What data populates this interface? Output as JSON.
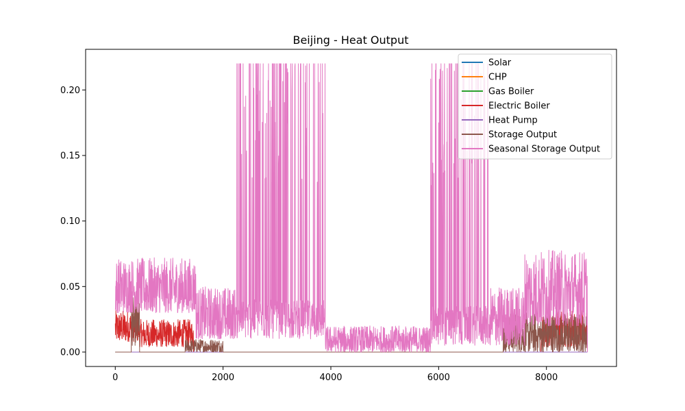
{
  "chart_data": {
    "type": "line",
    "title": "Beijing - Heat Output",
    "xlabel": "",
    "ylabel": "",
    "xlim": [
      -550,
      9300
    ],
    "ylim": [
      -0.011,
      0.231
    ],
    "x_ticks": [
      0,
      2000,
      4000,
      6000,
      8000
    ],
    "x_tick_labels": [
      "0",
      "2000",
      "4000",
      "6000",
      "8000"
    ],
    "y_ticks": [
      0.0,
      0.05,
      0.1,
      0.15,
      0.2
    ],
    "y_tick_labels": [
      "0.00",
      "0.05",
      "0.10",
      "0.15",
      "0.20"
    ],
    "grid": false,
    "legend_position": "top-right",
    "hours": 8760,
    "series": [
      {
        "name": "Solar",
        "color": "#1f77b4",
        "segments": [
          {
            "x0": 0,
            "x1": 8760,
            "base": 0.0,
            "peak": 0.0
          }
        ]
      },
      {
        "name": "CHP",
        "color": "#ff7f0e",
        "segments": [
          {
            "x0": 0,
            "x1": 8760,
            "base": 0.0,
            "peak": 0.0
          }
        ]
      },
      {
        "name": "Gas Boiler",
        "color": "#2ca02c",
        "segments": [
          {
            "x0": 0,
            "x1": 8760,
            "base": 0.0,
            "peak": 0.0
          }
        ]
      },
      {
        "name": "Electric Boiler",
        "color": "#d62728",
        "segments": [
          {
            "x0": 0,
            "x1": 450,
            "base": 0.008,
            "peak": 0.032
          },
          {
            "x0": 450,
            "x1": 1450,
            "base": 0.004,
            "peak": 0.025
          },
          {
            "x0": 7900,
            "x1": 8760,
            "base": 0.004,
            "peak": 0.032
          }
        ]
      },
      {
        "name": "Heat Pump",
        "color": "#9467bd",
        "segments": [
          {
            "x0": 0,
            "x1": 8760,
            "base": 0.0,
            "peak": 0.0
          }
        ]
      },
      {
        "name": "Storage Output",
        "color": "#8c564b",
        "segments": [
          {
            "x0": 300,
            "x1": 450,
            "base": 0.005,
            "peak": 0.042
          },
          {
            "x0": 1300,
            "x1": 2000,
            "base": 0.0,
            "peak": 0.01
          },
          {
            "x0": 7200,
            "x1": 8760,
            "base": 0.0,
            "peak": 0.03
          }
        ]
      },
      {
        "name": "Seasonal Storage Output",
        "color": "#e377c2",
        "segments": [
          {
            "x0": 0,
            "x1": 1500,
            "base": 0.03,
            "peak": 0.072
          },
          {
            "x0": 1500,
            "x1": 2250,
            "base": 0.01,
            "peak": 0.05
          },
          {
            "x0": 2250,
            "x1": 3900,
            "base": 0.01,
            "peak": 0.22
          },
          {
            "x0": 3900,
            "x1": 5850,
            "base": 0.0,
            "peak": 0.02
          },
          {
            "x0": 5850,
            "x1": 6950,
            "base": 0.005,
            "peak": 0.22
          },
          {
            "x0": 6950,
            "x1": 7600,
            "base": 0.005,
            "peak": 0.05
          },
          {
            "x0": 7600,
            "x1": 8760,
            "base": 0.02,
            "peak": 0.078
          }
        ]
      }
    ]
  }
}
